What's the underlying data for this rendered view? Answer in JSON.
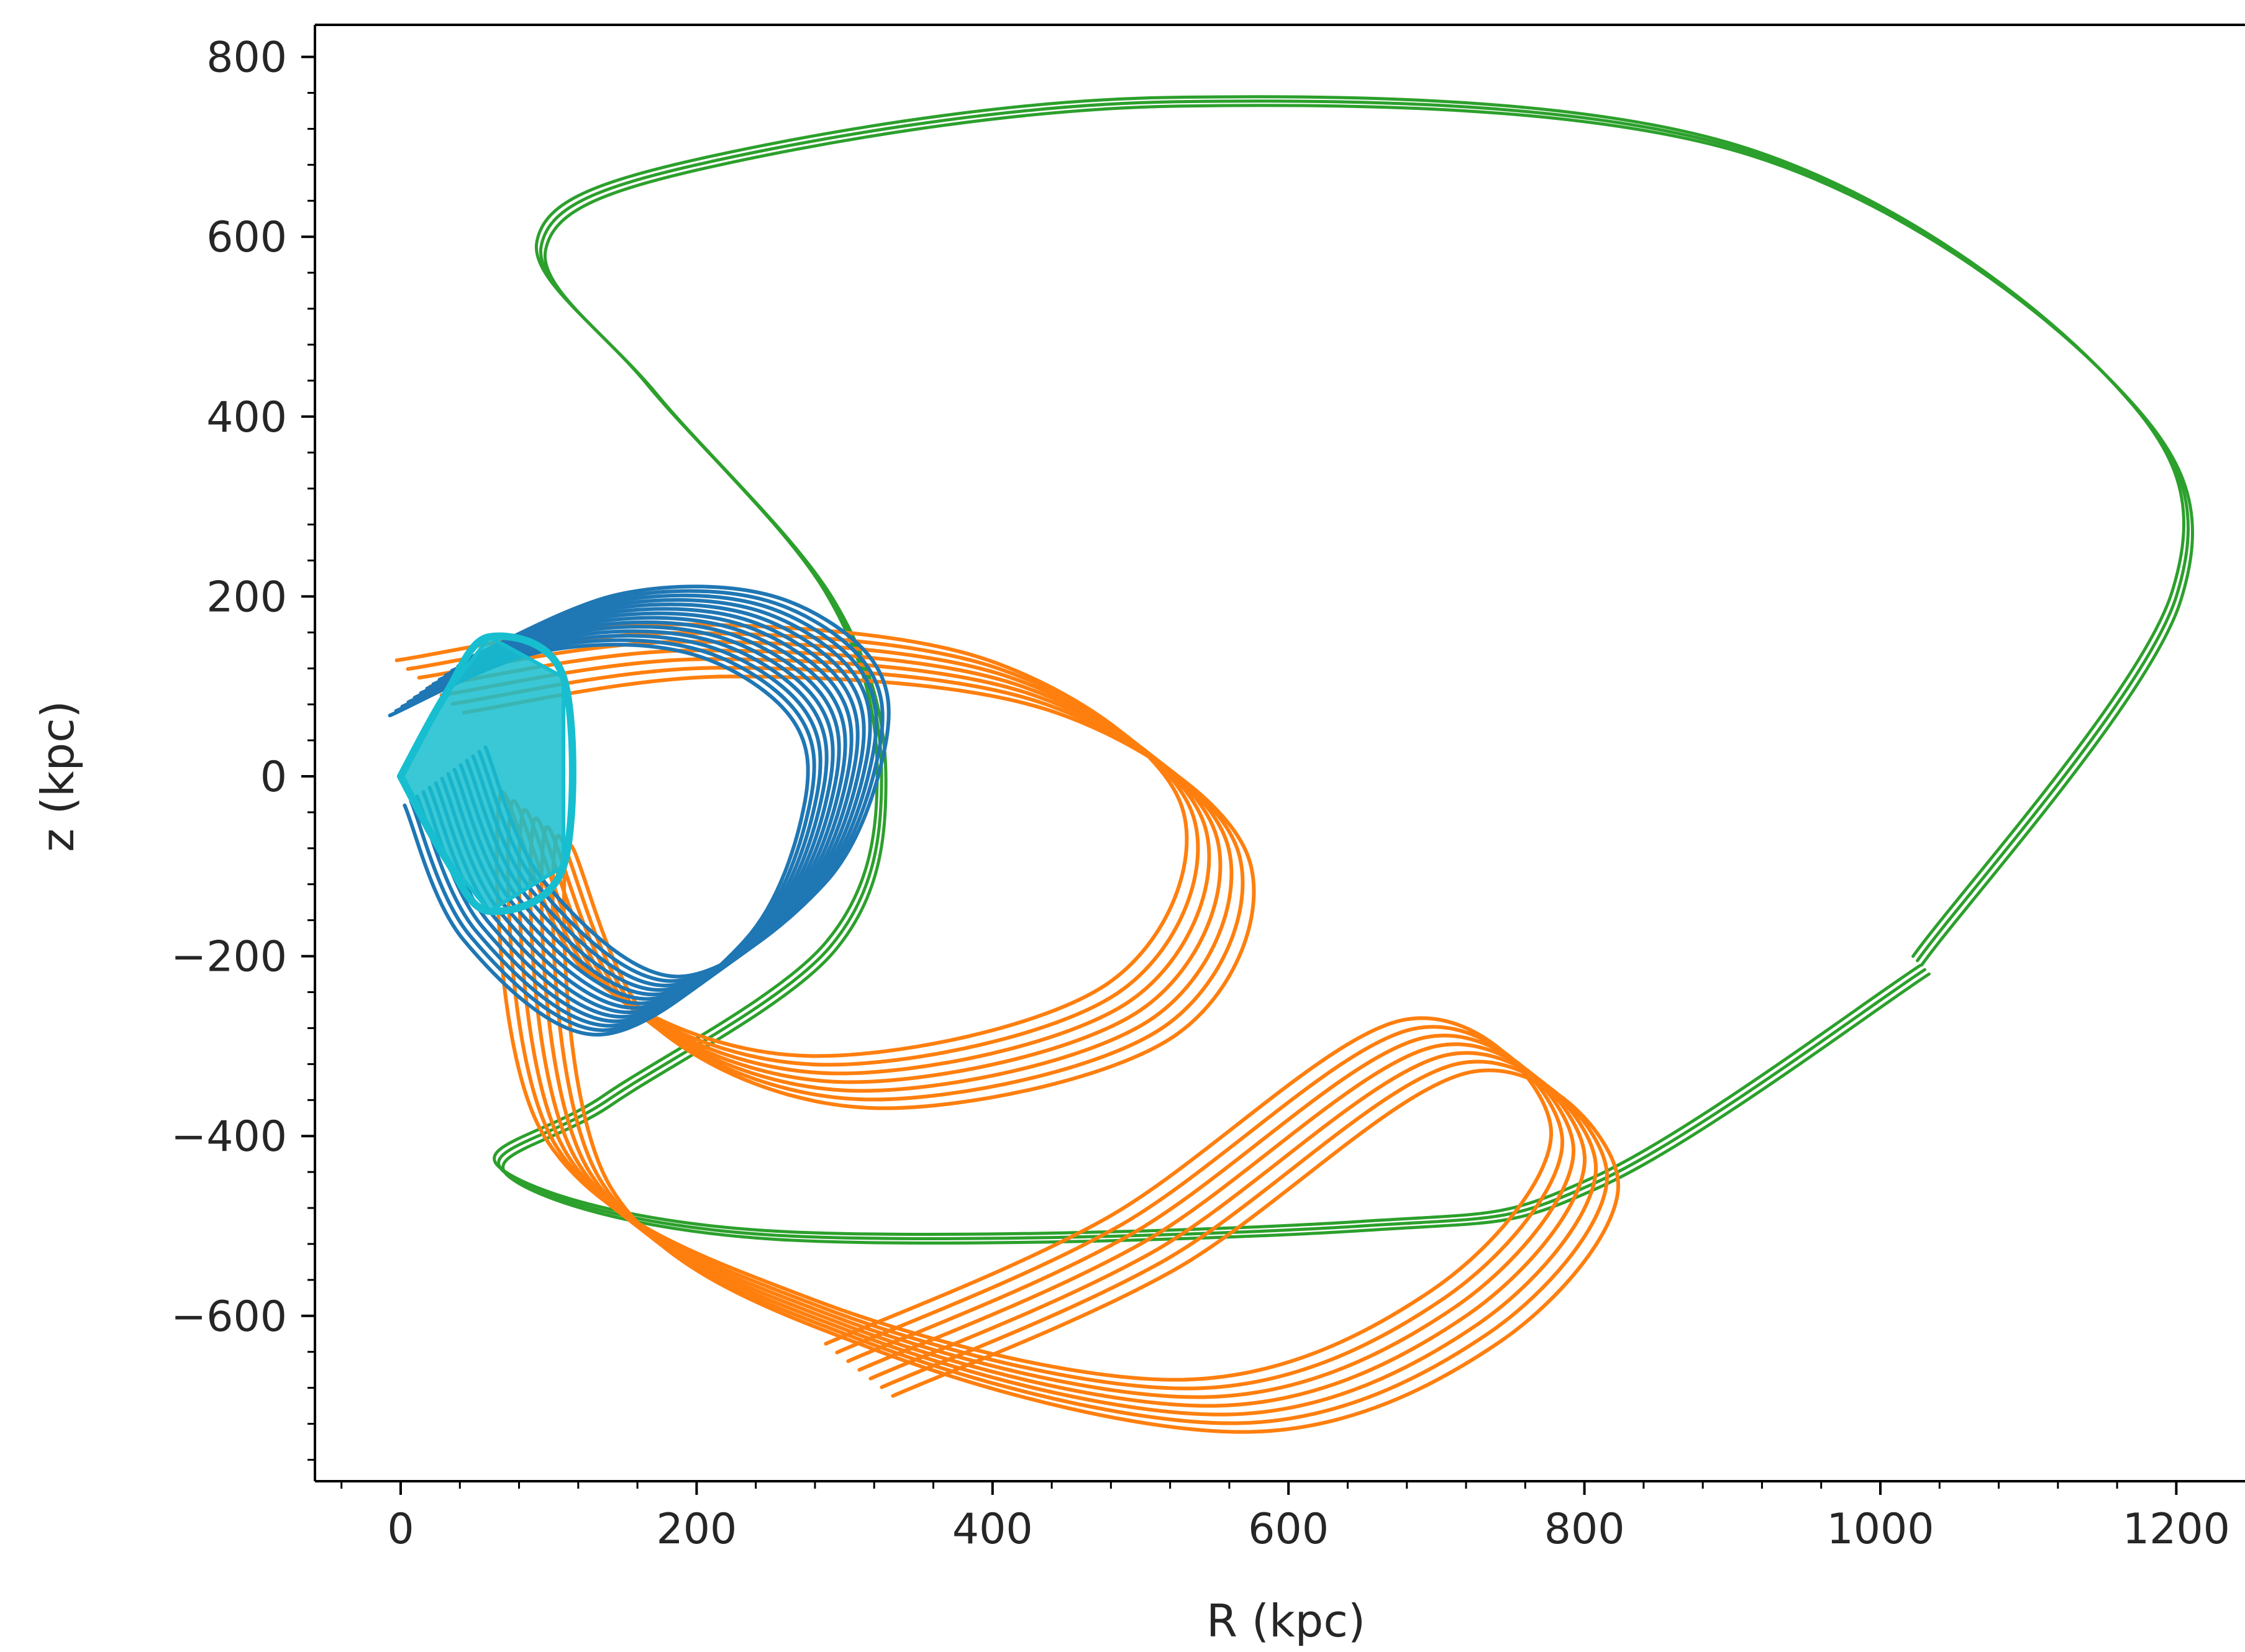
{
  "chart_data": {
    "type": "line",
    "xlabel": "R (kpc)",
    "ylabel": "z (kpc)",
    "xlim": [
      -95,
      1230
    ],
    "ylim": [
      -780,
      820
    ],
    "x_ticks": [
      0,
      200,
      400,
      600,
      800,
      1000,
      1200
    ],
    "y_ticks": [
      800,
      600,
      400,
      200,
      0,
      -200,
      -400,
      -600
    ],
    "x_tick_labels": [
      "0",
      "200",
      "400",
      "600",
      "800",
      "1000",
      "1200"
    ],
    "y_tick_labels": [
      "800",
      "600",
      "400",
      "200",
      "0",
      "−200",
      "−400",
      "−600"
    ],
    "grid": false,
    "legend": "none",
    "series": [
      {
        "color": "#2ca02c",
        "description_points": "wide orbit, three nearly coincident loops",
        "x": [
          1025,
          1200,
          1150,
          900,
          520,
          200,
          95,
          170,
          290,
          325,
          290,
          140,
          70,
          250,
          650,
          810,
          1030
        ],
        "y": [
          -205,
          200,
          450,
          700,
          750,
          680,
          590,
          430,
          200,
          0,
          -190,
          -360,
          -440,
          -510,
          -500,
          -450,
          -215
        ]
      },
      {
        "color": "#ff7f0e",
        "description_points": "eccentric orbit with precessing loops",
        "x": [
          20,
          200,
          420,
          550,
          500,
          300,
          150,
          90,
          120,
          300,
          550,
          720,
          800,
          700,
          500,
          310
        ],
        "y": [
          100,
          140,
          100,
          -60,
          -260,
          -340,
          -250,
          -50,
          -430,
          -610,
          -700,
          -600,
          -420,
          -300,
          -520,
          -660
        ]
      },
      {
        "color": "#1f77b4",
        "description_points": "compact rosette orbit",
        "x": [
          20,
          120,
          220,
          290,
          300,
          260,
          160,
          70,
          30
        ],
        "y": [
          100,
          170,
          170,
          100,
          0,
          -150,
          -255,
          -150,
          0
        ]
      },
      {
        "color": "#17becf",
        "description_points": "small orbit near origin",
        "x": [
          0,
          30,
          60,
          110,
          110,
          60,
          30,
          0
        ],
        "y": [
          0,
          90,
          155,
          110,
          -100,
          -150,
          -90,
          0
        ]
      }
    ]
  }
}
